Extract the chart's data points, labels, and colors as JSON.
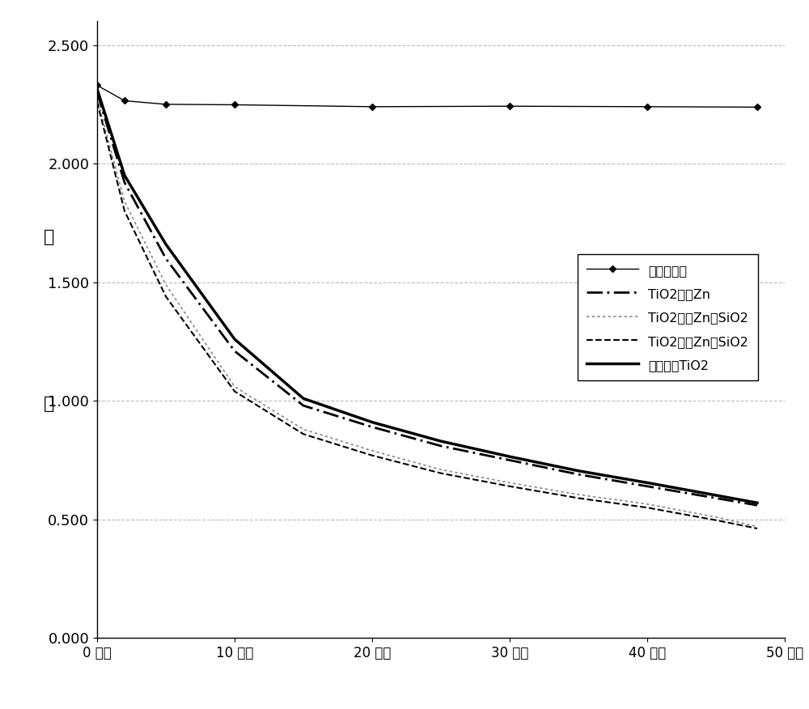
{
  "x_no_nano": [
    0,
    2,
    5,
    10,
    20,
    30,
    40,
    48
  ],
  "y_no_nano": [
    2.33,
    2.265,
    2.25,
    2.248,
    2.24,
    2.242,
    2.24,
    2.238
  ],
  "x_tio2_low_zn": [
    0,
    2,
    5,
    10,
    15,
    20,
    25,
    30,
    35,
    40,
    45,
    48
  ],
  "y_tio2_low_zn": [
    2.3,
    1.92,
    1.6,
    1.21,
    0.98,
    0.89,
    0.81,
    0.75,
    0.69,
    0.64,
    0.59,
    0.56
  ],
  "x_tio2_low_zn_sio2": [
    0,
    2,
    5,
    10,
    15,
    20,
    25,
    30,
    35,
    40,
    45,
    48
  ],
  "y_tio2_low_zn_sio2": [
    2.275,
    1.84,
    1.49,
    1.06,
    0.88,
    0.79,
    0.71,
    0.655,
    0.605,
    0.565,
    0.51,
    0.47
  ],
  "x_tio2_high_zn_sio2": [
    0,
    2,
    5,
    10,
    15,
    20,
    25,
    30,
    35,
    40,
    45,
    48
  ],
  "y_tio2_high_zn_sio2": [
    2.26,
    1.8,
    1.44,
    1.04,
    0.86,
    0.77,
    0.695,
    0.64,
    0.59,
    0.55,
    0.497,
    0.462
  ],
  "x_undoped_tio2": [
    0,
    2,
    5,
    10,
    15,
    20,
    25,
    30,
    35,
    40,
    45,
    48
  ],
  "y_undoped_tio2": [
    2.315,
    1.95,
    1.66,
    1.26,
    1.01,
    0.91,
    0.83,
    0.765,
    0.705,
    0.655,
    0.602,
    0.57
  ],
  "ylabel_top": "收",
  "ylabel_bottom": "吸",
  "xlabel_ticks": [
    0,
    10,
    20,
    30,
    40,
    50
  ],
  "xlabel_tick_labels": [
    "0 小时",
    "10 小时",
    "20 小时",
    "30 小时",
    "40 小时",
    "50 小时"
  ],
  "ylim": [
    0.0,
    2.6
  ],
  "xlim": [
    0,
    50
  ],
  "yticks": [
    0.0,
    0.5,
    1.0,
    1.5,
    2.0,
    2.5
  ],
  "ytick_labels": [
    "0.000",
    "0.500",
    "1.000",
    "1.500",
    "2.000",
    "2.500"
  ],
  "legend_labels": [
    "无纳米涂层",
    "TiO2，低Zn",
    "TiO2，低Zn，SiO2",
    "TiO2，高Zn，SiO2",
    "未掺杂的TiO2"
  ],
  "background_color": "#ffffff",
  "grid_color": "#bbbbbb"
}
